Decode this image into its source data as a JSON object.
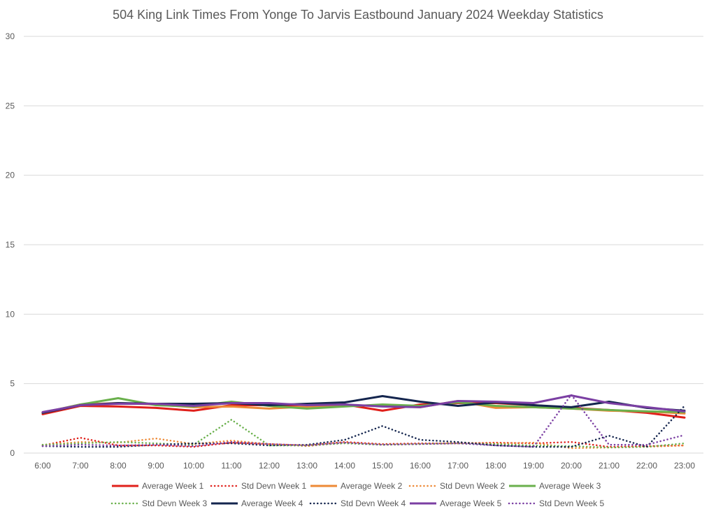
{
  "chart_data": {
    "type": "line",
    "title": "504 King Link Times From Yonge To Jarvis Eastbound January 2024 Weekday Statistics",
    "xlabel": "",
    "ylabel": "",
    "ylim": [
      0,
      30
    ],
    "yticks": [
      0,
      5,
      10,
      15,
      20,
      25,
      30
    ],
    "grid": true,
    "legend_position": "bottom",
    "categories": [
      "6:00",
      "7:00",
      "8:00",
      "9:00",
      "10:00",
      "11:00",
      "12:00",
      "13:00",
      "14:00",
      "15:00",
      "16:00",
      "17:00",
      "18:00",
      "19:00",
      "20:00",
      "21:00",
      "22:00",
      "23:00"
    ],
    "series": [
      {
        "name": "Average Week 1",
        "color": "#e0201b",
        "style": "solid",
        "values": [
          2.8,
          3.4,
          3.35,
          3.25,
          3.05,
          3.45,
          3.45,
          3.35,
          3.5,
          3.05,
          3.5,
          3.6,
          3.6,
          3.45,
          3.25,
          3.1,
          2.9,
          2.55
        ]
      },
      {
        "name": "Std Devn Week 1",
        "color": "#e0201b",
        "style": "dotted",
        "values": [
          0.55,
          1.1,
          0.55,
          0.55,
          0.45,
          0.75,
          0.65,
          0.55,
          0.8,
          0.65,
          0.7,
          0.7,
          0.75,
          0.7,
          0.8,
          0.45,
          0.5,
          0.55
        ]
      },
      {
        "name": "Average Week 2",
        "color": "#ed8936",
        "style": "solid",
        "values": [
          2.9,
          3.5,
          3.6,
          3.5,
          3.3,
          3.35,
          3.2,
          3.35,
          3.45,
          3.4,
          3.3,
          3.75,
          3.25,
          3.3,
          3.2,
          3.05,
          3.0,
          2.85
        ]
      },
      {
        "name": "Std Devn Week 2",
        "color": "#ed8936",
        "style": "dotted",
        "values": [
          0.6,
          0.8,
          0.75,
          1.05,
          0.65,
          0.9,
          0.65,
          0.5,
          0.75,
          0.6,
          0.65,
          0.75,
          0.7,
          0.75,
          0.35,
          0.4,
          0.45,
          0.55
        ]
      },
      {
        "name": "Average Week 3",
        "color": "#6ab04c",
        "style": "solid",
        "values": [
          2.9,
          3.5,
          3.95,
          3.45,
          3.35,
          3.7,
          3.4,
          3.2,
          3.35,
          3.5,
          3.4,
          3.65,
          3.4,
          3.3,
          3.2,
          3.1,
          3.0,
          2.95
        ]
      },
      {
        "name": "Std Devn Week 3",
        "color": "#6ab04c",
        "style": "dotted",
        "values": [
          0.6,
          0.7,
          0.8,
          0.7,
          0.6,
          2.4,
          0.55,
          0.55,
          0.7,
          0.6,
          0.65,
          0.7,
          0.65,
          0.55,
          0.5,
          0.4,
          0.45,
          0.7
        ]
      },
      {
        "name": "Average Week 4",
        "color": "#14254e",
        "style": "solid",
        "values": [
          2.9,
          3.45,
          3.6,
          3.55,
          3.55,
          3.6,
          3.45,
          3.55,
          3.65,
          4.1,
          3.7,
          3.4,
          3.65,
          3.45,
          3.3,
          3.7,
          3.25,
          3.05
        ]
      },
      {
        "name": "Std Devn Week 4",
        "color": "#14254e",
        "style": "dotted",
        "values": [
          0.5,
          0.45,
          0.45,
          0.6,
          0.7,
          0.7,
          0.55,
          0.6,
          0.95,
          1.95,
          0.95,
          0.8,
          0.55,
          0.45,
          0.45,
          1.25,
          0.45,
          3.4
        ]
      },
      {
        "name": "Average Week 5",
        "color": "#7b3fa3",
        "style": "solid",
        "values": [
          2.95,
          3.45,
          3.55,
          3.55,
          3.4,
          3.6,
          3.6,
          3.45,
          3.5,
          3.35,
          3.3,
          3.75,
          3.7,
          3.6,
          4.15,
          3.6,
          3.3,
          3.0
        ]
      },
      {
        "name": "Std Devn Week 5",
        "color": "#7b3fa3",
        "style": "dotted",
        "values": [
          0.5,
          0.6,
          0.55,
          0.6,
          0.5,
          0.8,
          0.65,
          0.55,
          0.75,
          0.6,
          0.65,
          0.7,
          0.55,
          0.45,
          4.2,
          0.6,
          0.6,
          1.3
        ]
      }
    ]
  }
}
